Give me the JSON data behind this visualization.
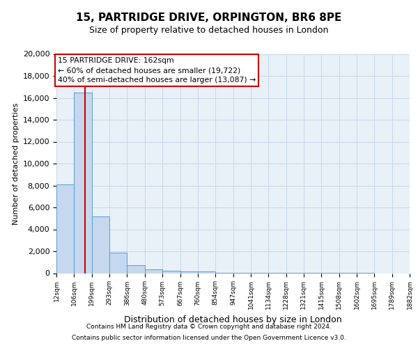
{
  "title1": "15, PARTRIDGE DRIVE, ORPINGTON, BR6 8PE",
  "title2": "Size of property relative to detached houses in London",
  "xlabel": "Distribution of detached houses by size in London",
  "ylabel": "Number of detached properties",
  "footnote1": "Contains HM Land Registry data © Crown copyright and database right 2024.",
  "footnote2": "Contains public sector information licensed under the Open Government Licence v3.0.",
  "property_size": 162,
  "property_label": "15 PARTRIDGE DRIVE: 162sqm",
  "annotation_line1": "← 60% of detached houses are smaller (19,722)",
  "annotation_line2": "40% of semi-detached houses are larger (13,087) →",
  "bar_color": "#c5d8ed",
  "bar_edge_color": "#5b9bd5",
  "red_line_color": "#cc0000",
  "annotation_box_color": "#cc0000",
  "grid_color": "#c8d8ea",
  "background_color": "#e8f0f8",
  "bin_edges": [
    12,
    106,
    199,
    293,
    386,
    480,
    573,
    667,
    760,
    854,
    947,
    1041,
    1134,
    1228,
    1321,
    1415,
    1508,
    1602,
    1695,
    1789,
    1882
  ],
  "bin_counts": [
    8100,
    16500,
    5200,
    1900,
    700,
    330,
    220,
    170,
    130,
    60,
    30,
    20,
    10,
    5,
    3,
    2,
    1,
    1,
    0,
    0
  ],
  "ylim": [
    0,
    20000
  ],
  "yticks": [
    0,
    2000,
    4000,
    6000,
    8000,
    10000,
    12000,
    14000,
    16000,
    18000,
    20000
  ]
}
